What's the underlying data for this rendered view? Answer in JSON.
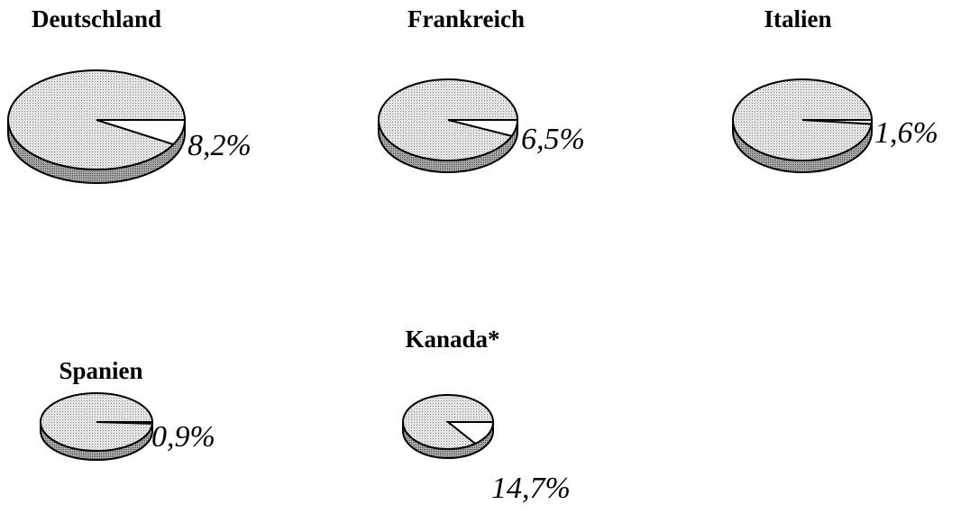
{
  "chart_data": [
    {
      "type": "pie",
      "title": "Deutschland",
      "values": [
        8.2
      ],
      "value_labels": [
        "8,2%"
      ],
      "colors": [
        "#ffffff"
      ]
    },
    {
      "type": "pie",
      "title": "Frankreich",
      "values": [
        6.5
      ],
      "value_labels": [
        "6,5%"
      ],
      "colors": [
        "#ffffff"
      ]
    },
    {
      "type": "pie",
      "title": "Italien",
      "values": [
        1.6
      ],
      "value_labels": [
        "1,6%"
      ],
      "colors": [
        "#ffffff"
      ]
    },
    {
      "type": "pie",
      "title": "Spanien",
      "values": [
        0.9
      ],
      "value_labels": [
        "0,9%"
      ],
      "colors": [
        "#ffffff"
      ]
    },
    {
      "type": "pie",
      "title": "Kanada*",
      "values": [
        14.7
      ],
      "value_labels": [
        "14,7%"
      ],
      "colors": [
        "#ffffff"
      ]
    }
  ]
}
